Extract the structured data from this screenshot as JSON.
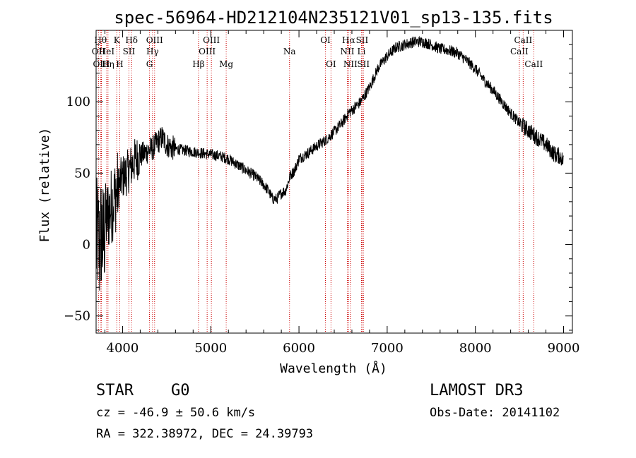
{
  "chart_data": {
    "type": "line",
    "title": "spec-56964-HD212104N235121V01_sp13-135.fits",
    "xlabel": "Wavelength (Å)",
    "ylabel": "Flux (relative)",
    "xlim": [
      3700,
      9100
    ],
    "ylim": [
      -62,
      150
    ],
    "xticks": [
      4000,
      5000,
      6000,
      7000,
      8000,
      9000
    ],
    "yticks": [
      -50,
      0,
      50,
      100
    ],
    "grid": false,
    "series": [
      {
        "name": "flux",
        "x": [
          3700,
          3720,
          3740,
          3760,
          3780,
          3800,
          3830,
          3860,
          3890,
          3920,
          3950,
          3980,
          4010,
          4050,
          4100,
          4150,
          4200,
          4250,
          4300,
          4350,
          4400,
          4450,
          4500,
          4550,
          4600,
          4700,
          4800,
          4900,
          5000,
          5100,
          5200,
          5300,
          5400,
          5500,
          5600,
          5650,
          5700,
          5750,
          5800,
          5850,
          5900,
          5950,
          6000,
          6100,
          6200,
          6300,
          6400,
          6500,
          6560,
          6600,
          6700,
          6800,
          6900,
          7000,
          7100,
          7200,
          7300,
          7400,
          7500,
          7600,
          7700,
          7800,
          7900,
          8000,
          8100,
          8200,
          8300,
          8400,
          8500,
          8600,
          8700,
          8800,
          8900,
          8960,
          9000
        ],
        "values": [
          0,
          5,
          -5,
          10,
          0,
          15,
          20,
          25,
          30,
          35,
          40,
          45,
          48,
          50,
          55,
          60,
          62,
          64,
          66,
          68,
          72,
          75,
          70,
          68,
          67,
          66,
          65,
          64,
          63,
          62,
          60,
          56,
          52,
          48,
          42,
          38,
          32,
          32,
          36,
          38,
          48,
          52,
          60,
          64,
          69,
          73,
          79,
          86,
          92,
          94,
          100,
          110,
          124,
          132,
          138,
          140,
          142,
          142,
          140,
          137,
          136,
          134,
          129,
          123,
          115,
          108,
          100,
          92,
          85,
          80,
          75,
          70,
          63,
          62,
          58
        ]
      }
    ],
    "line_markers": [
      {
        "label": "OII",
        "x": 3727,
        "row": 2
      },
      {
        "label": "Hθ",
        "x": 3750,
        "row": 0
      },
      {
        "label": "OIII",
        "x": 3760,
        "row": 3
      },
      {
        "label": "HeI",
        "x": 3820,
        "row": 2
      },
      {
        "label": "Hη",
        "x": 3835,
        "row": 3
      },
      {
        "label": "K",
        "x": 3934,
        "row": 0
      },
      {
        "label": "H",
        "x": 3968,
        "row": 3
      },
      {
        "label": "SII",
        "x": 4072,
        "row": 2
      },
      {
        "label": "Hδ",
        "x": 4102,
        "row": 0
      },
      {
        "label": "OIII",
        "x": 4363,
        "row": 0
      },
      {
        "label": "Hγ",
        "x": 4340,
        "row": 2
      },
      {
        "label": "G",
        "x": 4305,
        "row": 3
      },
      {
        "label": "Hβ",
        "x": 4861,
        "row": 3
      },
      {
        "label": "OIII",
        "x": 4959,
        "row": 2
      },
      {
        "label": "OIII",
        "x": 5007,
        "row": 0
      },
      {
        "label": "Mg",
        "x": 5175,
        "row": 3
      },
      {
        "label": "Na",
        "x": 5893,
        "row": 1
      },
      {
        "label": "OI",
        "x": 6300,
        "row": 0
      },
      {
        "label": "OI",
        "x": 6363,
        "row": 3
      },
      {
        "label": "NII",
        "x": 6548,
        "row": 2
      },
      {
        "label": "Hα",
        "x": 6563,
        "row": 0
      },
      {
        "label": "NII",
        "x": 6583,
        "row": 3
      },
      {
        "label": "Li",
        "x": 6708,
        "row": 2
      },
      {
        "label": "SII",
        "x": 6716,
        "row": 0
      },
      {
        "label": "SII",
        "x": 6731,
        "row": 3
      },
      {
        "label": "CaII",
        "x": 8498,
        "row": 2
      },
      {
        "label": "CaII",
        "x": 8542,
        "row": 0
      },
      {
        "label": "CaII",
        "x": 8662,
        "row": 3
      }
    ]
  },
  "info": {
    "object_class": "STAR",
    "subclass": "G0",
    "survey": "LAMOST DR3",
    "cz": "cz = -46.9 ± 50.6 km/s",
    "coords": "RA = 322.38972, DEC =  24.39793",
    "obs_date": "Obs-Date: 20141102"
  },
  "colors": {
    "line": "#000000",
    "marker": "#cc0000",
    "background": "#ffffff"
  }
}
